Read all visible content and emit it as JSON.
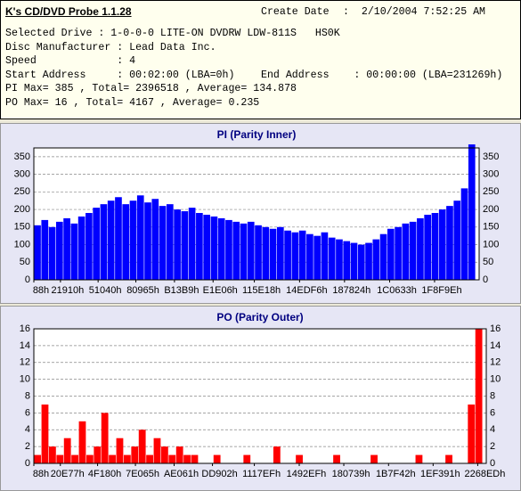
{
  "header": {
    "title": "K's CD/DVD Probe 1.1.28",
    "create_date_label": "Create Date",
    "create_date": ":  2/10/2004 7:52:25 AM",
    "lines": [
      "Selected Drive : 1-0-0-0 LITE-ON DVDRW LDW-811S   HS0K",
      "Disc Manufacturer : Lead Data Inc.",
      "Speed             : 4",
      "Start Address     : 00:02:00 (LBA=0h)",
      "PI Max= 385 , Total= 2396518 , Average= 134.878",
      "PO Max= 16 , Total= 4167 , Average= 0.235"
    ],
    "end_address": "End Address    : 00:00:00 (LBA=231269h)"
  },
  "chart_data": [
    {
      "type": "bar",
      "title": "PI (Parity Inner)",
      "color": "#0000ff",
      "grid": true,
      "xlim": [
        136,
        2298473
      ],
      "ylim": [
        0,
        375
      ],
      "yticks": [
        0,
        50,
        100,
        150,
        200,
        250,
        300,
        350
      ],
      "xticks": [
        {
          "value": 136,
          "label": "88h"
        },
        {
          "value": 137488,
          "label": "21910h"
        },
        {
          "value": 331840,
          "label": "51040h"
        },
        {
          "value": 526693,
          "label": "80965h"
        },
        {
          "value": 725945,
          "label": "B13B9h"
        },
        {
          "value": 925190,
          "label": "E1E06h"
        },
        {
          "value": 1138200,
          "label": "115E18h"
        },
        {
          "value": 1371638,
          "label": "14EDF6h"
        },
        {
          "value": 1603620,
          "label": "187824h"
        },
        {
          "value": 1836595,
          "label": "1C0633h"
        },
        {
          "value": 2068382,
          "label": "1F8F9Eh"
        }
      ],
      "x": [
        20000,
        58000,
        96000,
        134000,
        172000,
        210000,
        248000,
        286000,
        324000,
        362000,
        400000,
        438000,
        476000,
        514000,
        552000,
        590000,
        628000,
        666000,
        704000,
        742000,
        780000,
        818000,
        856000,
        894000,
        932000,
        970000,
        1008000,
        1046000,
        1084000,
        1122000,
        1160000,
        1198000,
        1236000,
        1274000,
        1312000,
        1350000,
        1388000,
        1426000,
        1464000,
        1502000,
        1540000,
        1578000,
        1616000,
        1654000,
        1692000,
        1730000,
        1768000,
        1806000,
        1844000,
        1882000,
        1920000,
        1958000,
        1996000,
        2034000,
        2072000,
        2110000,
        2148000,
        2186000,
        2224000,
        2262000
      ],
      "values": [
        155,
        170,
        150,
        165,
        175,
        160,
        180,
        190,
        205,
        215,
        225,
        235,
        215,
        225,
        240,
        220,
        230,
        210,
        215,
        200,
        195,
        205,
        190,
        185,
        180,
        175,
        170,
        165,
        160,
        165,
        155,
        150,
        145,
        150,
        140,
        135,
        140,
        130,
        125,
        135,
        120,
        115,
        110,
        105,
        100,
        105,
        115,
        130,
        145,
        150,
        160,
        165,
        175,
        185,
        190,
        200,
        210,
        225,
        260,
        385
      ]
    },
    {
      "type": "bar",
      "title": "PO (Parity Outer)",
      "color": "#ff0000",
      "grid": true,
      "xlim": [
        136,
        2298473
      ],
      "ylim": [
        0,
        16
      ],
      "yticks": [
        0,
        2,
        4,
        6,
        8,
        10,
        12,
        14,
        16
      ],
      "xticks": [
        {
          "value": 136,
          "label": "88h"
        },
        {
          "value": 134775,
          "label": "20E77h"
        },
        {
          "value": 323968,
          "label": "4F180h"
        },
        {
          "value": 516197,
          "label": "7E065h"
        },
        {
          "value": 712801,
          "label": "AE061h"
        },
        {
          "value": 907522,
          "label": "DD902h"
        },
        {
          "value": 1120239,
          "label": "1117EFh"
        },
        {
          "value": 1348335,
          "label": "1492EFh"
        },
        {
          "value": 1574713,
          "label": "180739h"
        },
        {
          "value": 1802050,
          "label": "1B7F42h"
        },
        {
          "value": 2028433,
          "label": "1EF391h"
        },
        {
          "value": 2255085,
          "label": "2268EDh"
        }
      ],
      "x": [
        20000,
        58000,
        96000,
        134000,
        172000,
        210000,
        248000,
        286000,
        324000,
        362000,
        400000,
        438000,
        476000,
        514000,
        552000,
        590000,
        628000,
        666000,
        704000,
        742000,
        780000,
        818000,
        856000,
        894000,
        932000,
        970000,
        1008000,
        1046000,
        1084000,
        1122000,
        1160000,
        1198000,
        1236000,
        1274000,
        1312000,
        1350000,
        1388000,
        1426000,
        1464000,
        1502000,
        1540000,
        1578000,
        1616000,
        1654000,
        1692000,
        1730000,
        1768000,
        1806000,
        1844000,
        1882000,
        1920000,
        1958000,
        1996000,
        2034000,
        2072000,
        2110000,
        2148000,
        2186000,
        2224000,
        2262000
      ],
      "values": [
        1,
        7,
        2,
        1,
        3,
        1,
        5,
        1,
        2,
        6,
        1,
        3,
        1,
        2,
        4,
        1,
        3,
        2,
        1,
        2,
        1,
        1,
        0,
        0,
        1,
        0,
        0,
        0,
        1,
        0,
        0,
        0,
        2,
        0,
        0,
        1,
        0,
        0,
        0,
        0,
        1,
        0,
        0,
        0,
        0,
        1,
        0,
        0,
        0,
        0,
        0,
        1,
        0,
        0,
        0,
        1,
        0,
        0,
        7,
        16
      ]
    }
  ]
}
